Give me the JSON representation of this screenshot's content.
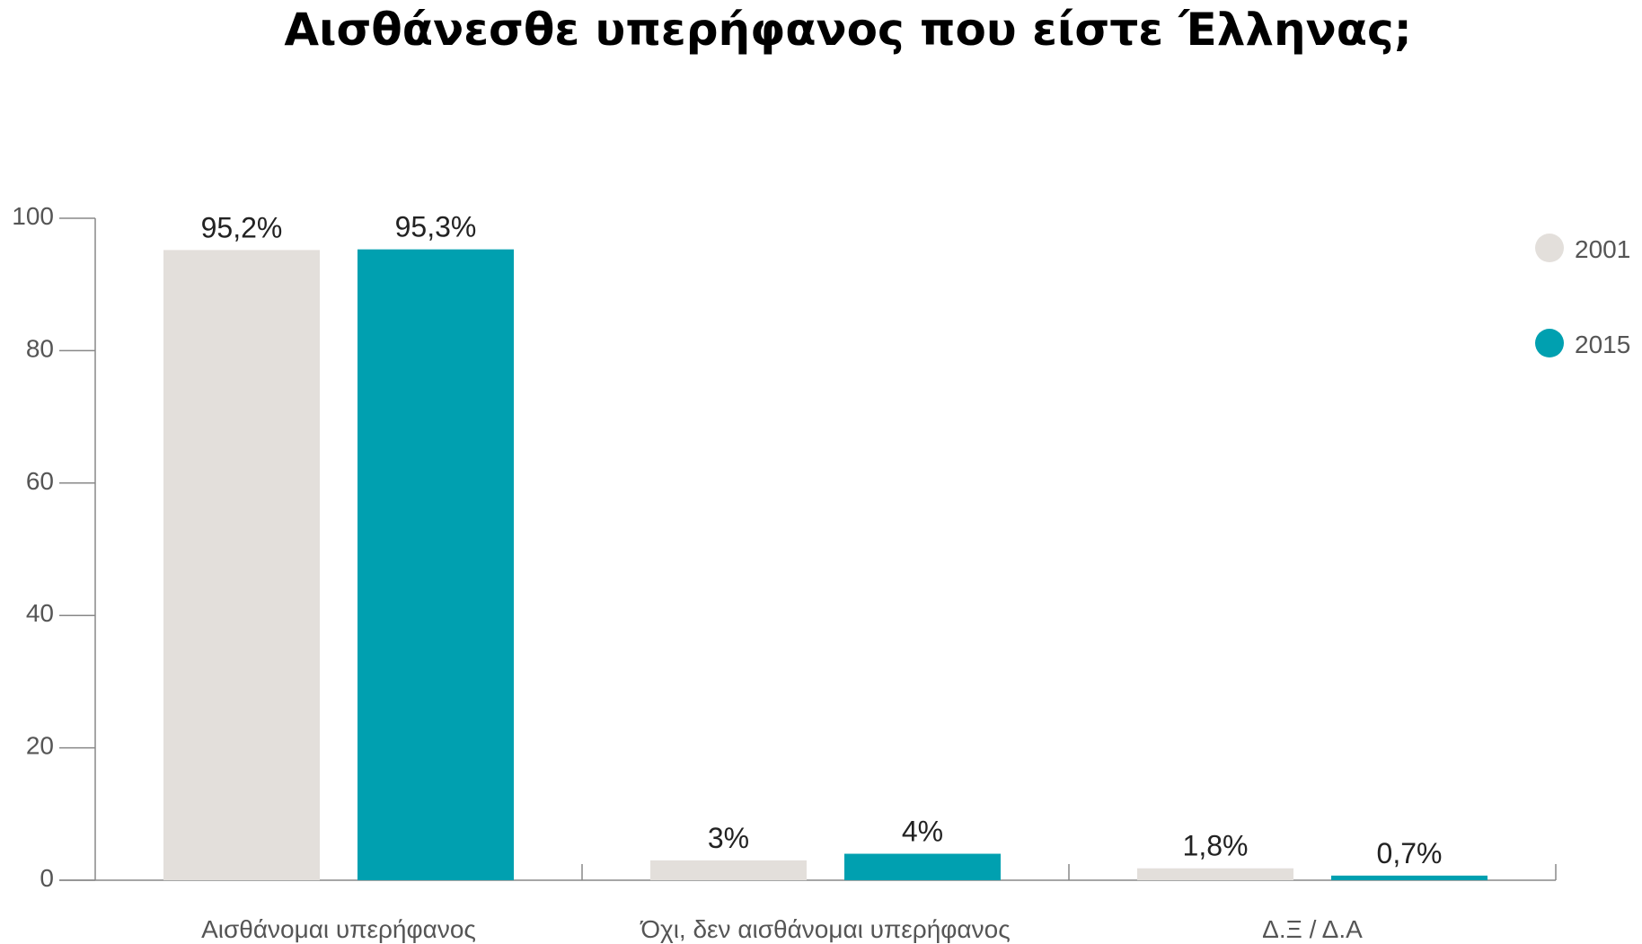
{
  "chart_data": {
    "type": "bar",
    "title": "Αισθάνεσθε υπερήφανος που είστε Έλληνας;",
    "categories": [
      "Αισθάνομαι υπερήφανος",
      "Όχι, δεν αισθάνομαι υπερήφανος",
      "Δ.Ξ / Δ.Α"
    ],
    "series": [
      {
        "name": "2001",
        "color": "#e3dfdb",
        "values": [
          95.2,
          3,
          1.8
        ],
        "labels": [
          "95,2%",
          "3%",
          "1,8%"
        ]
      },
      {
        "name": "2015",
        "color": "#00a0b0",
        "values": [
          95.3,
          4,
          0.7
        ],
        "labels": [
          "95,3%",
          "4%",
          "0,7%"
        ]
      }
    ],
    "yticks": [
      "0",
      "20",
      "40",
      "60",
      "80",
      "100"
    ],
    "ylim": [
      0,
      100
    ],
    "xlabel": "",
    "ylabel": "",
    "grid": false,
    "legend": "right"
  }
}
